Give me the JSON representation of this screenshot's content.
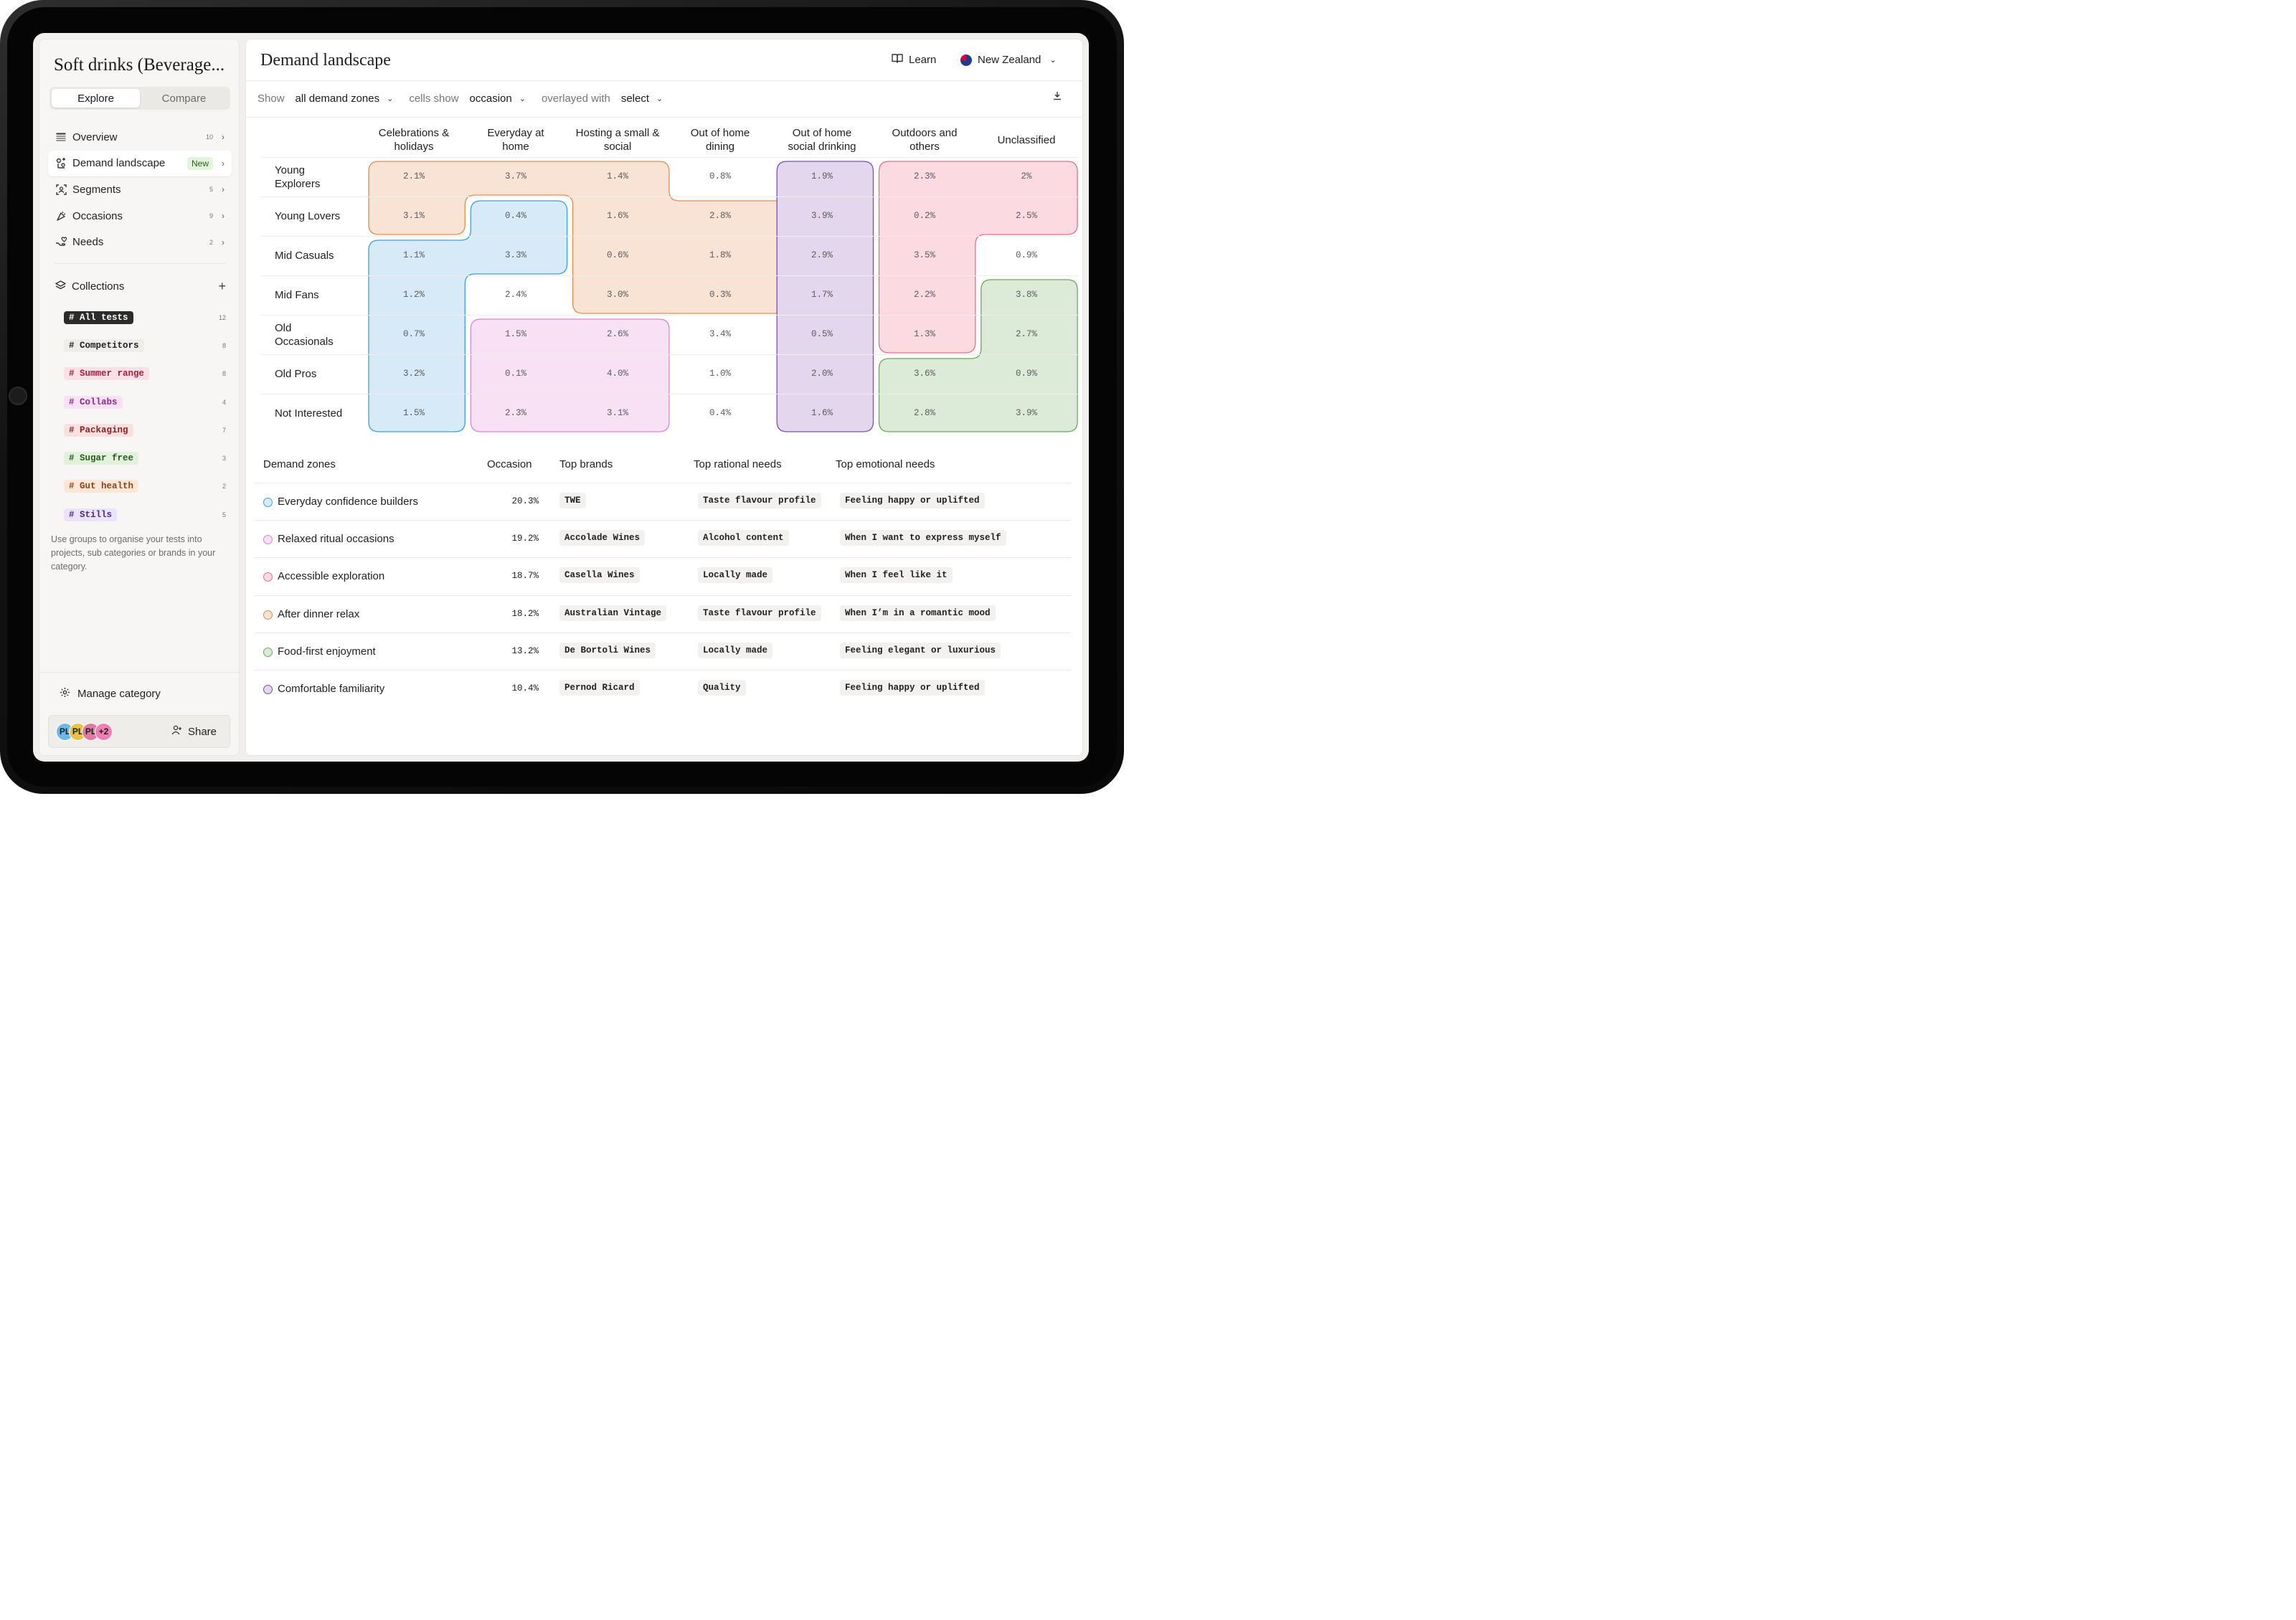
{
  "app": {
    "title": "Soft drinks (Beverage...",
    "tabs": [
      "Explore",
      "Compare"
    ],
    "active_tab": "Explore"
  },
  "sidebar": {
    "nav": [
      {
        "label": "Overview",
        "count": "10",
        "icon": "table-icon"
      },
      {
        "label": "Demand landscape",
        "badge": "New",
        "icon": "demand-icon"
      },
      {
        "label": "Segments",
        "count": "5",
        "icon": "segments-icon"
      },
      {
        "label": "Occasions",
        "count": "9",
        "icon": "occasions-icon"
      },
      {
        "label": "Needs",
        "count": "2",
        "icon": "needs-icon"
      }
    ],
    "collections_label": "Collections",
    "collections": [
      {
        "label": "# All tests",
        "count": "12",
        "bg": "#2b2b2b",
        "fg": "#ffffff"
      },
      {
        "label": "# Competitors",
        "count": "8",
        "bg": "#efedea",
        "fg": "#1f1f1f"
      },
      {
        "label": "# Summer range",
        "count": "8",
        "bg": "#fbe1e6",
        "fg": "#a0213f"
      },
      {
        "label": "# Collabs",
        "count": "4",
        "bg": "#f7e2f5",
        "fg": "#8e2a86"
      },
      {
        "label": "# Packaging",
        "count": "7",
        "bg": "#fbe0e0",
        "fg": "#8b1f1f"
      },
      {
        "label": "# Sugar free",
        "count": "3",
        "bg": "#e1f1dc",
        "fg": "#275a1c"
      },
      {
        "label": "# Gut health",
        "count": "2",
        "bg": "#fbe6d8",
        "fg": "#8a4419"
      },
      {
        "label": "# Stills",
        "count": "5",
        "bg": "#ebe3f7",
        "fg": "#4b2a85"
      }
    ],
    "help_text": "Use groups to organise your tests into projects, sub categories or brands in your category.",
    "manage_label": "Manage category",
    "avatars": [
      {
        "label": "PL",
        "color": "#6cb8e6"
      },
      {
        "label": "PL",
        "color": "#e8c34a"
      },
      {
        "label": "PL",
        "color": "#e07aa0"
      },
      {
        "label": "+2",
        "color": "#ef7fb1"
      }
    ],
    "share_label": "Share"
  },
  "header": {
    "title": "Demand landscape",
    "learn_label": "Learn",
    "country": "New Zealand"
  },
  "filters": {
    "show_label": "Show",
    "show_value": "all demand zones",
    "cells_label": "cells show",
    "cells_value": "occasion",
    "overlay_label": "overlayed with",
    "overlay_value": "select"
  },
  "matrix": {
    "columns": [
      [
        "Celebrations &",
        "holidays"
      ],
      [
        "Everyday at",
        "home"
      ],
      [
        "Hosting a small &",
        "social"
      ],
      [
        "Out of home",
        "dining"
      ],
      [
        "Out of home",
        "social drinking"
      ],
      [
        "Outdoors and",
        "others"
      ],
      [
        "Unclassified"
      ]
    ],
    "rows": [
      {
        "label": [
          "Young",
          "Explorers"
        ],
        "values": [
          "2.1%",
          "3.7%",
          "1.4%",
          "0.8%",
          "1.9%",
          "2.3%",
          "2%"
        ]
      },
      {
        "label": [
          "Young Lovers"
        ],
        "values": [
          "3.1%",
          "0.4%",
          "1.6%",
          "2.8%",
          "3.9%",
          "0.2%",
          "2.5%"
        ]
      },
      {
        "label": [
          "Mid Casuals"
        ],
        "values": [
          "1.1%",
          "3.3%",
          "0.6%",
          "1.8%",
          "2.9%",
          "3.5%",
          "0.9%"
        ]
      },
      {
        "label": [
          "Mid Fans"
        ],
        "values": [
          "1.2%",
          "2.4%",
          "3.0%",
          "0.3%",
          "1.7%",
          "2.2%",
          "3.8%"
        ]
      },
      {
        "label": [
          "Old",
          "Occasionals"
        ],
        "values": [
          "0.7%",
          "1.5%",
          "2.6%",
          "3.4%",
          "0.5%",
          "1.3%",
          "2.7%"
        ]
      },
      {
        "label": [
          "Old Pros"
        ],
        "values": [
          "3.2%",
          "0.1%",
          "4.0%",
          "1.0%",
          "2.0%",
          "3.6%",
          "0.9%"
        ]
      },
      {
        "label": [
          "Not Interested"
        ],
        "values": [
          "1.5%",
          "2.3%",
          "3.1%",
          "0.4%",
          "1.6%",
          "2.8%",
          "3.9%"
        ]
      }
    ],
    "zone_colors": {
      "orange": {
        "fill": "#f8e3d5",
        "stroke": "#e38d50"
      },
      "blue": {
        "fill": "#d6ebf7",
        "stroke": "#3f9fd6"
      },
      "pink": {
        "fill": "#f8e1f5",
        "stroke": "#dd84d6"
      },
      "purple": {
        "fill": "#e4d6ec",
        "stroke": "#7b4fb3"
      },
      "red": {
        "fill": "#fbdbe1",
        "stroke": "#e5708a"
      },
      "green": {
        "fill": "#dcebd7",
        "stroke": "#6aa85e"
      }
    }
  },
  "table": {
    "headers": [
      "Demand zones",
      "Occasion",
      "Top brands",
      "Top rational needs",
      "Top emotional needs"
    ],
    "rows": [
      {
        "zone": "Everyday confidence builders",
        "dot": "#3f9fd6",
        "dot_fill": "#d6ebf7",
        "occasion": "20.3%",
        "brand": "TWE",
        "rational": "Taste flavour profile",
        "emotional": "Feeling happy or uplifted"
      },
      {
        "zone": "Relaxed ritual occasions",
        "dot": "#dd84d6",
        "dot_fill": "#f8e1f5",
        "occasion": "19.2%",
        "brand": "Accolade Wines",
        "rational": "Alcohol content",
        "emotional": "When I want to express myself"
      },
      {
        "zone": "Accessible exploration",
        "dot": "#e5708a",
        "dot_fill": "#fbdbe1",
        "occasion": "18.7%",
        "brand": "Casella Wines",
        "rational": "Locally made",
        "emotional": "When I feel like it"
      },
      {
        "zone": "After dinner relax",
        "dot": "#e38d50",
        "dot_fill": "#f8e3d5",
        "occasion": "18.2%",
        "brand": "Australian Vintage",
        "rational": "Taste flavour profile",
        "emotional": "When I’m in a romantic mood"
      },
      {
        "zone": "Food-first enjoyment",
        "dot": "#6aa85e",
        "dot_fill": "#dcebd7",
        "occasion": "13.2%",
        "brand": "De Bortoli Wines",
        "rational": "Locally made",
        "emotional": "Feeling elegant or luxurious"
      },
      {
        "zone": "Comfortable familiarity",
        "dot": "#7b4fb3",
        "dot_fill": "#e4d6ec",
        "occasion": "10.4%",
        "brand": "Pernod Ricard",
        "rational": "Quality",
        "emotional": "Feeling happy or uplifted"
      }
    ]
  }
}
